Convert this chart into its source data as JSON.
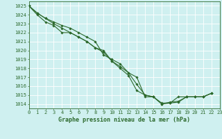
{
  "xlabel": "Graphe pression niveau de la mer (hPa)",
  "xlim": [
    0,
    23
  ],
  "ylim": [
    1013.5,
    1025.5
  ],
  "yticks": [
    1014,
    1015,
    1016,
    1017,
    1018,
    1019,
    1020,
    1021,
    1022,
    1023,
    1024,
    1025
  ],
  "xticks": [
    0,
    1,
    2,
    3,
    4,
    5,
    6,
    7,
    8,
    9,
    10,
    11,
    12,
    13,
    14,
    15,
    16,
    17,
    18,
    19,
    20,
    21,
    22,
    23
  ],
  "background_color": "#cff0f0",
  "grid_color": "#ffffff",
  "line_color": "#2d6a2d",
  "series": [
    [
      1025.0,
      1024.2,
      1023.6,
      1023.2,
      1022.8,
      1022.5,
      1022.0,
      1021.5,
      1021.0,
      1019.5,
      1019.0,
      1018.5,
      1017.5,
      1017.0,
      1014.8,
      1014.8,
      1014.0,
      1014.2,
      1014.3,
      1014.8,
      1014.8,
      1014.8,
      1015.2
    ],
    [
      1025.0,
      1024.2,
      1023.6,
      1023.0,
      1022.5,
      1022.0,
      1021.5,
      1021.0,
      1020.3,
      1020.0,
      1018.8,
      1018.2,
      1017.5,
      1016.2,
      1015.0,
      1014.8,
      1014.0,
      1014.1,
      1014.2,
      1014.8,
      1014.8,
      1014.8,
      1015.2
    ],
    [
      1025.0,
      1024.0,
      1023.2,
      1022.8,
      1022.0,
      1022.0,
      1021.5,
      1021.0,
      1020.3,
      1019.8,
      1018.8,
      1018.0,
      1017.2,
      1015.5,
      1015.0,
      1014.8,
      1014.1,
      1014.1,
      1014.8,
      1014.8,
      1014.8,
      1014.8,
      1015.2
    ]
  ],
  "font_family": "monospace",
  "xlabel_fontsize": 6.0,
  "tick_fontsize": 5.0,
  "marker": "D",
  "marker_size": 1.8,
  "linewidth": 0.8
}
